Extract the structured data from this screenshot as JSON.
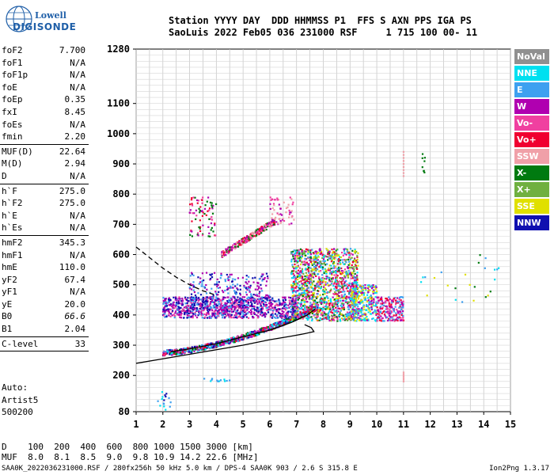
{
  "logo": {
    "line1": "Lowell",
    "line2": "DIGISONDE"
  },
  "header": {
    "line1": "Station YYYY DAY  DDD HHMMSS P1  FFS S AXN PPS IGA PS",
    "line2": "SaoLuis 2022 Feb05 036 231000 RSF     1 715 100 00- 11"
  },
  "params_group1": [
    {
      "label": "foF2",
      "value": "7.700"
    },
    {
      "label": "foF1",
      "value": "N/A"
    },
    {
      "label": "foF1p",
      "value": "N/A"
    },
    {
      "label": "foE",
      "value": "N/A"
    },
    {
      "label": "foEp",
      "value": "0.35"
    },
    {
      "label": "fxI",
      "value": "8.45"
    },
    {
      "label": "foEs",
      "value": "N/A"
    },
    {
      "label": "fmin",
      "value": "2.20"
    }
  ],
  "params_group2": [
    {
      "label": "MUF(D)",
      "value": "22.64"
    },
    {
      "label": "M(D)",
      "value": "2.94"
    },
    {
      "label": "D",
      "value": "N/A"
    }
  ],
  "params_group3": [
    {
      "label": "h`F",
      "value": "275.0"
    },
    {
      "label": "h`F2",
      "value": "275.0"
    },
    {
      "label": "h`E",
      "value": "N/A"
    },
    {
      "label": "h`Es",
      "value": "N/A"
    }
  ],
  "params_group4": [
    {
      "label": "hmF2",
      "value": "345.3"
    },
    {
      "label": "hmF1",
      "value": "N/A"
    },
    {
      "label": "hmE",
      "value": "110.0"
    },
    {
      "label": "yF2",
      "value": "67.4"
    },
    {
      "label": "yF1",
      "value": "N/A"
    },
    {
      "label": "yE",
      "value": "20.0"
    },
    {
      "label": "B0",
      "value": "66.6",
      "italic": true
    },
    {
      "label": "B1",
      "value": "2.04"
    }
  ],
  "params_group5": [
    {
      "label": "C-level",
      "value": "33"
    }
  ],
  "auto": {
    "line1": "Auto:",
    "line2": "Artist5",
    "line3": "500200"
  },
  "legend": [
    {
      "label": "NoVal",
      "color": "#909090"
    },
    {
      "label": "NNE",
      "color": "#00e0f0"
    },
    {
      "label": "E",
      "color": "#3ea0f0"
    },
    {
      "label": "W",
      "color": "#b000b0"
    },
    {
      "label": "Vo-",
      "color": "#f040a0"
    },
    {
      "label": "Vo+",
      "color": "#f00030"
    },
    {
      "label": "SSW",
      "color": "#f0a0a8"
    },
    {
      "label": "X-",
      "color": "#007a10"
    },
    {
      "label": "X+",
      "color": "#70b040"
    },
    {
      "label": "SSE",
      "color": "#e0e000"
    },
    {
      "label": "NNW",
      "color": "#1010b0"
    }
  ],
  "bottom": {
    "line1": "D    100  200  400  600  800 1000 1500 3000 [km]",
    "line2": "MUF  8.0  8.1  8.5  9.0  9.8 10.9 14.2 22.6 [MHz]"
  },
  "footer": "SAA0K_2022036231000.RSF / 280fx256h 50 kHz 5.0 km / DPS-4 SAA0K 903 / 2.6 S 315.8 E",
  "version": "Ion2Png 1.3.17",
  "chart_data": {
    "type": "scatter",
    "title": "",
    "xlabel": "",
    "ylabel": "",
    "xlim": [
      1,
      15
    ],
    "ylim": [
      80,
      1280
    ],
    "x_ticks": [
      1,
      2,
      3,
      4,
      5,
      6,
      7,
      8,
      9,
      10,
      11,
      12,
      13,
      14,
      15
    ],
    "y_ticks": [
      80,
      200,
      300,
      400,
      500,
      600,
      700,
      800,
      900,
      1000,
      1100,
      1280
    ],
    "grid": true,
    "curves": [
      {
        "name": "profile",
        "style": "solid",
        "points": [
          [
            1.0,
            240
          ],
          [
            2.0,
            255
          ],
          [
            3.0,
            270
          ],
          [
            4.0,
            285
          ],
          [
            5.0,
            300
          ],
          [
            6.0,
            318
          ],
          [
            6.8,
            330
          ],
          [
            7.3,
            338
          ],
          [
            7.65,
            345
          ],
          [
            7.55,
            358
          ],
          [
            7.3,
            368
          ]
        ]
      },
      {
        "name": "extrapolation",
        "style": "dashed",
        "points": [
          [
            1.0,
            625
          ],
          [
            1.5,
            590
          ],
          [
            2.0,
            555
          ],
          [
            2.5,
            525
          ],
          [
            3.0,
            500
          ],
          [
            3.5,
            480
          ],
          [
            4.0,
            465
          ]
        ]
      },
      {
        "name": "trace",
        "style": "solid",
        "points": [
          [
            2.3,
            278
          ],
          [
            3.0,
            288
          ],
          [
            4.0,
            305
          ],
          [
            5.0,
            328
          ],
          [
            6.0,
            350
          ],
          [
            6.8,
            375
          ],
          [
            7.4,
            400
          ],
          [
            7.7,
            420
          ]
        ]
      }
    ]
  }
}
